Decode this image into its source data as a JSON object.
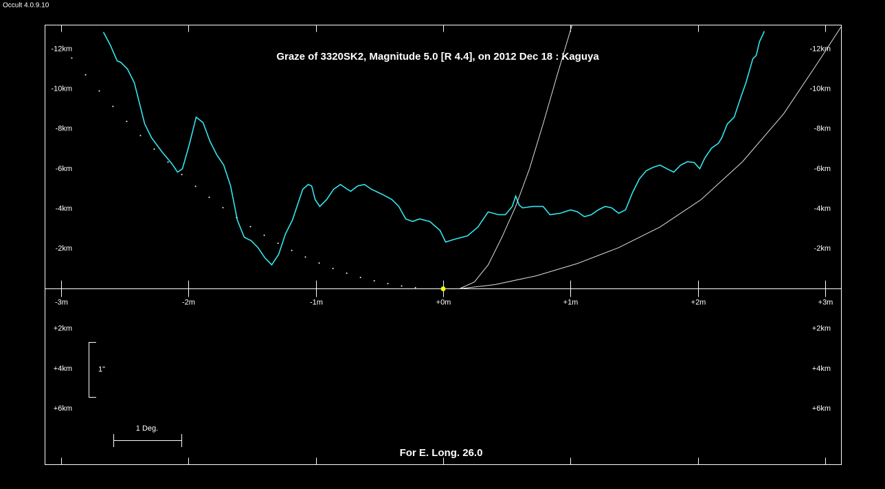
{
  "window_title": "Occult 4.0.9.10",
  "chart_data": {
    "type": "line",
    "title": "Graze of  3320SK2,  Magnitude 5.0 [R 4.4],  on 2012 Dec 18  :  Kaguya",
    "footer": "For E. Long. 26.0",
    "vertical_scale_label": "1\"",
    "horizontal_scale_label": "1 Deg.",
    "xlim": [
      -3.124,
      3.124
    ],
    "ylim": [
      -13.2,
      8.8
    ],
    "y_inverted": true,
    "grid": false,
    "xticks": [
      {
        "value": -3,
        "label": "-3m"
      },
      {
        "value": -2,
        "label": "-2m"
      },
      {
        "value": -1,
        "label": "-1m"
      },
      {
        "value": 0,
        "label": "+0m"
      },
      {
        "value": 1,
        "label": "+1m"
      },
      {
        "value": 2,
        "label": "+2m"
      },
      {
        "value": 3,
        "label": "+3m"
      }
    ],
    "yticks": [
      {
        "value": -12,
        "label": "-12km"
      },
      {
        "value": -10,
        "label": "-10km"
      },
      {
        "value": -8,
        "label": "-8km"
      },
      {
        "value": -6,
        "label": "-6km"
      },
      {
        "value": -4,
        "label": "-4km"
      },
      {
        "value": -2,
        "label": "-2km"
      },
      {
        "value": 2,
        "label": "+2km"
      },
      {
        "value": 4,
        "label": "+4km"
      },
      {
        "value": 6,
        "label": "+6km"
      }
    ],
    "series": [
      {
        "style": "line",
        "color": "#33e6f0",
        "x": [
          -2.666,
          -2.612,
          -2.558,
          -2.531,
          -2.477,
          -2.423,
          -2.369,
          -2.342,
          -2.288,
          -2.208,
          -2.127,
          -2.084,
          -2.046,
          -1.992,
          -1.938,
          -1.884,
          -1.83,
          -1.776,
          -1.722,
          -1.668,
          -1.615,
          -1.561,
          -1.507,
          -1.453,
          -1.399,
          -1.345,
          -1.291,
          -1.237,
          -1.183,
          -1.129,
          -1.102,
          -1.059,
          -1.032,
          -1.005,
          -0.968,
          -0.914,
          -0.86,
          -0.806,
          -0.752,
          -0.725,
          -0.671,
          -0.617,
          -0.563,
          -0.482,
          -0.402,
          -0.348,
          -0.294,
          -0.24,
          -0.186,
          -0.105,
          -0.024,
          0.019,
          0.084,
          0.191,
          0.272,
          0.353,
          0.434,
          0.488,
          0.542,
          0.569,
          0.596,
          0.623,
          0.704,
          0.784,
          0.838,
          0.919,
          1.0,
          1.054,
          1.108,
          1.162,
          1.216,
          1.27,
          1.323,
          1.377,
          1.431,
          1.485,
          1.539,
          1.593,
          1.647,
          1.701,
          1.755,
          1.809,
          1.863,
          1.916,
          1.97,
          2.013,
          2.051,
          2.105,
          2.159,
          2.186,
          2.229,
          2.283,
          2.337,
          2.375,
          2.429,
          2.456,
          2.482,
          2.52
        ],
        "values": [
          -12.85,
          -12.2,
          -11.41,
          -11.34,
          -11.0,
          -10.31,
          -8.93,
          -8.25,
          -7.56,
          -6.87,
          -6.25,
          -5.84,
          -6.01,
          -7.22,
          -8.59,
          -8.32,
          -7.39,
          -6.7,
          -6.19,
          -5.15,
          -3.44,
          -2.58,
          -2.41,
          -2.06,
          -1.55,
          -1.2,
          -1.72,
          -2.75,
          -3.44,
          -4.47,
          -4.98,
          -5.22,
          -5.15,
          -4.47,
          -4.12,
          -4.47,
          -4.98,
          -5.22,
          -4.98,
          -4.88,
          -5.15,
          -5.22,
          -4.98,
          -4.74,
          -4.47,
          -4.12,
          -3.5,
          -3.37,
          -3.5,
          -3.37,
          -2.92,
          -2.34,
          -2.47,
          -2.65,
          -3.09,
          -3.85,
          -3.71,
          -3.71,
          -4.12,
          -4.64,
          -4.19,
          -4.05,
          -4.12,
          -4.12,
          -3.71,
          -3.78,
          -3.95,
          -3.85,
          -3.61,
          -3.71,
          -3.95,
          -4.12,
          -4.05,
          -3.78,
          -3.95,
          -4.81,
          -5.5,
          -5.91,
          -6.08,
          -6.19,
          -6.01,
          -5.84,
          -6.19,
          -6.36,
          -6.32,
          -6.01,
          -6.53,
          -7.04,
          -7.28,
          -7.56,
          -8.25,
          -8.59,
          -9.62,
          -10.31,
          -11.51,
          -11.68,
          -12.37,
          -12.89
        ]
      },
      {
        "style": "dots",
        "color": "#ffffff",
        "x": [
          -2.914,
          -2.806,
          -2.698,
          -2.591,
          -2.483,
          -2.375,
          -2.267,
          -2.159,
          -2.051,
          -1.943,
          -1.836,
          -1.728,
          -1.62,
          -1.512,
          -1.404,
          -1.296,
          -1.188,
          -1.081,
          -0.973,
          -0.865,
          -0.757,
          -0.649,
          -0.541,
          -0.434,
          -0.326,
          -0.218
        ],
        "values": [
          -11.55,
          -10.71,
          -9.9,
          -9.13,
          -8.38,
          -7.67,
          -6.99,
          -6.34,
          -5.72,
          -5.13,
          -4.58,
          -4.06,
          -3.57,
          -3.11,
          -2.68,
          -2.28,
          -1.92,
          -1.59,
          -1.29,
          -1.02,
          -0.78,
          -0.57,
          -0.4,
          -0.26,
          -0.14,
          -0.06
        ]
      },
      {
        "style": "line",
        "color": "#e0e0e0",
        "x": [
          0.127,
          0.245,
          0.353,
          0.461,
          0.569,
          0.677,
          0.784,
          0.892,
          1.011
        ],
        "values": [
          0,
          -0.34,
          -1.2,
          -2.58,
          -4.12,
          -6.01,
          -8.25,
          -10.65,
          -13.2
        ]
      },
      {
        "style": "line",
        "color": "#e0e0e0",
        "x": [
          0.127,
          0.407,
          0.73,
          1.054,
          1.377,
          1.701,
          2.024,
          2.348,
          2.671,
          2.941,
          3.124
        ],
        "values": [
          0,
          -0.21,
          -0.65,
          -1.27,
          -2.06,
          -3.09,
          -4.47,
          -6.36,
          -8.76,
          -11.34,
          -13.13
        ]
      },
      {
        "style": "marker",
        "color": "#ffff00",
        "x": [
          0
        ],
        "values": [
          0
        ]
      }
    ]
  }
}
